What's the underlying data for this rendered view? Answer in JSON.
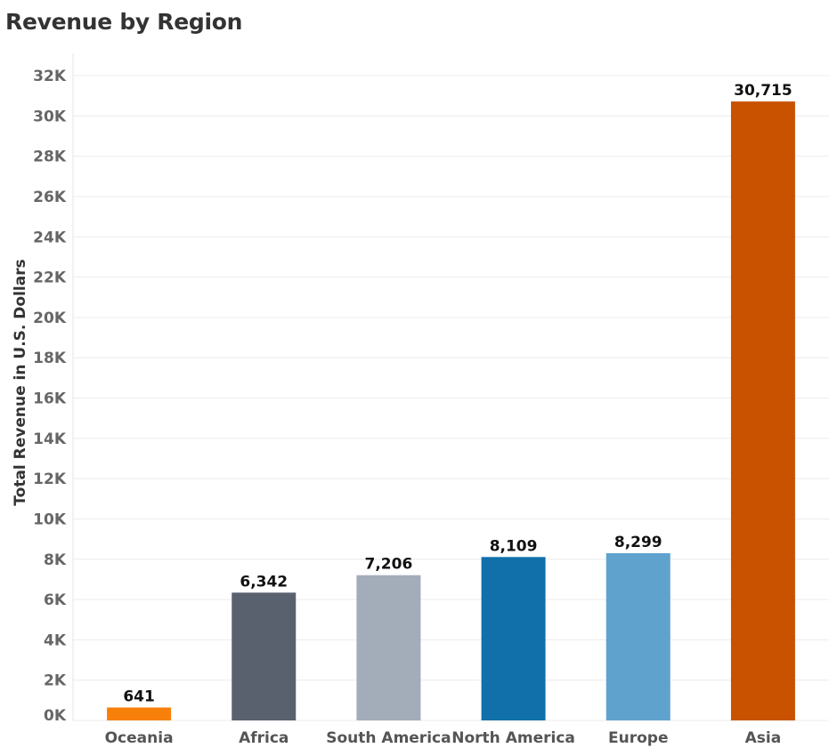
{
  "chart_data": {
    "type": "bar",
    "title": "Revenue by Region",
    "ylabel": "Total Revenue in U.S. Dollars",
    "xlabel": "",
    "categories": [
      "Oceania",
      "Africa",
      "South America",
      "North America",
      "Europe",
      "Asia"
    ],
    "values": [
      641,
      6342,
      7206,
      8109,
      8299,
      30715
    ],
    "value_labels": [
      "641",
      "6,342",
      "7,206",
      "8,109",
      "8,299",
      "30,715"
    ],
    "colors": [
      "#f7800a",
      "#5a616e",
      "#a3acb9",
      "#1170aa",
      "#5fa2ce",
      "#c85200"
    ],
    "ylim": [
      0,
      32000
    ],
    "y_ticks": [
      0,
      2000,
      4000,
      6000,
      8000,
      10000,
      12000,
      14000,
      16000,
      18000,
      20000,
      22000,
      24000,
      26000,
      28000,
      30000,
      32000
    ],
    "y_tick_labels": [
      "0K",
      "2K",
      "4K",
      "6K",
      "8K",
      "10K",
      "12K",
      "14K",
      "16K",
      "18K",
      "20K",
      "22K",
      "24K",
      "26K",
      "28K",
      "30K",
      "32K"
    ],
    "grid": true,
    "legend": "none"
  }
}
